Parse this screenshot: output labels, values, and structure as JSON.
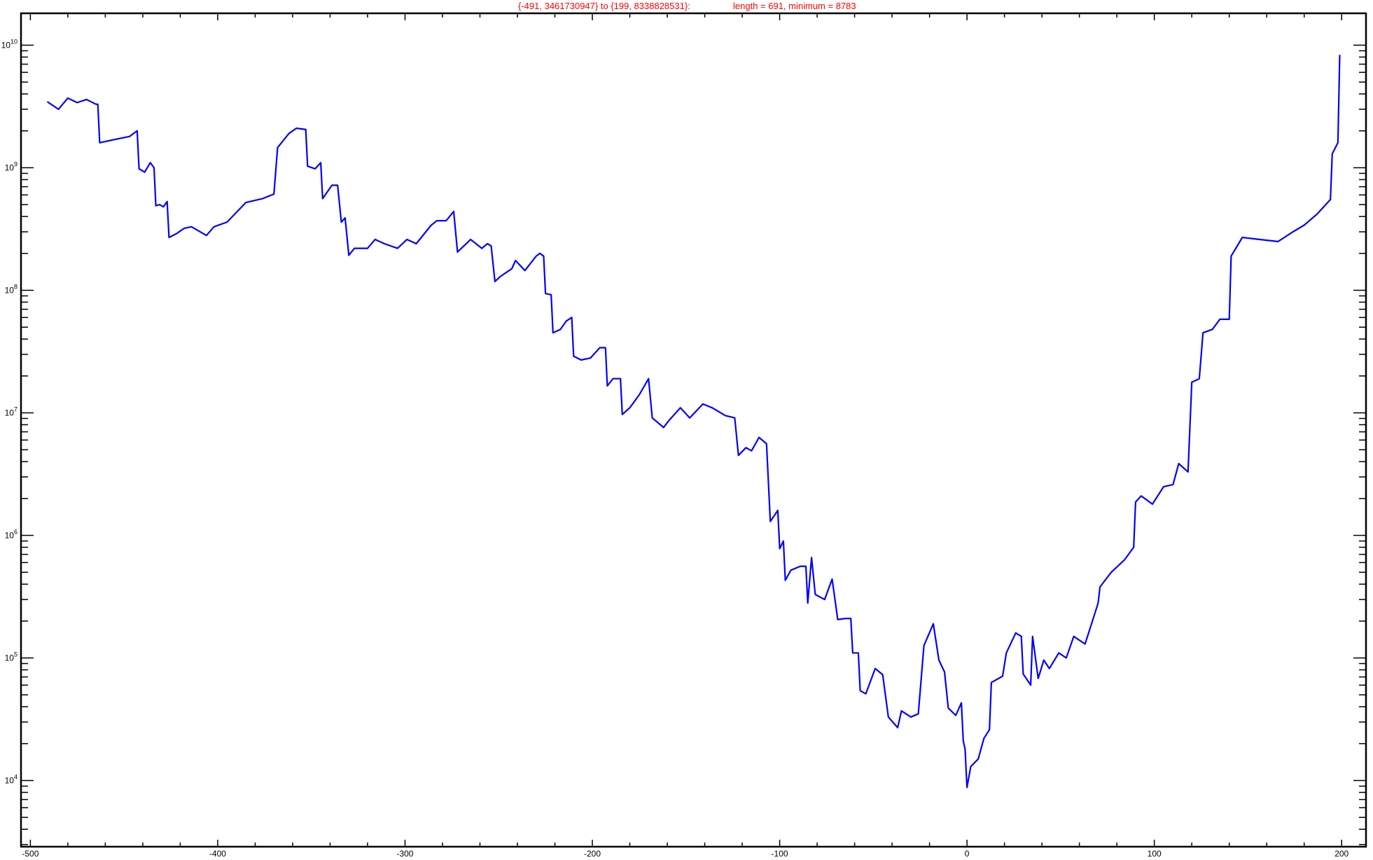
{
  "chart_data": {
    "type": "line",
    "title_parts": [
      "{-491, 3461730947} to {199, 8338828531}:",
      "length = 691, minimum = 8783"
    ],
    "xlabel": "",
    "ylabel": "",
    "x_scale": "linear",
    "y_scale": "log",
    "xlim": [
      -505,
      213
    ],
    "ylim_log10": [
      3.46,
      10.26
    ],
    "x_ticks": [
      -500,
      -400,
      -300,
      -200,
      -100,
      0,
      100,
      200
    ],
    "x_tick_labels": [
      "-500",
      "-400",
      "-300",
      "-200",
      "-100",
      "0",
      "100",
      "200"
    ],
    "y_ticks": [
      4,
      5,
      6,
      7,
      8,
      9,
      10
    ],
    "y_tick_base": "10",
    "grid": false,
    "line_color": "#0000ff",
    "title_color": "#ff0000",
    "series": [
      {
        "points": [
          [
            -491,
            3460000000.0
          ],
          [
            -485,
            3000000000.0
          ],
          [
            -480,
            3700000000.0
          ],
          [
            -475,
            3400000000.0
          ],
          [
            -470,
            3600000000.0
          ],
          [
            -465,
            3300000000.0
          ],
          [
            -464,
            3300000000.0
          ],
          [
            -463,
            1600000000.0
          ],
          [
            -455,
            1700000000.0
          ],
          [
            -447,
            1800000000.0
          ],
          [
            -443,
            2000000000.0
          ],
          [
            -442,
            980000000.0
          ],
          [
            -439,
            920000000.0
          ],
          [
            -436,
            1100000000.0
          ],
          [
            -434,
            1000000000.0
          ],
          [
            -433,
            490000000.0
          ],
          [
            -431,
            500000000.0
          ],
          [
            -429,
            480000000.0
          ],
          [
            -427,
            530000000.0
          ],
          [
            -426,
            270000000.0
          ],
          [
            -422,
            290000000.0
          ],
          [
            -418,
            320000000.0
          ],
          [
            -414,
            330000000.0
          ],
          [
            -406,
            280000000.0
          ],
          [
            -402,
            330000000.0
          ],
          [
            -395,
            360000000.0
          ],
          [
            -385,
            520000000.0
          ],
          [
            -376,
            560000000.0
          ],
          [
            -370,
            610000000.0
          ],
          [
            -368,
            1460000000.0
          ],
          [
            -362,
            1900000000.0
          ],
          [
            -358,
            2100000000.0
          ],
          [
            -353,
            2050000000.0
          ],
          [
            -352,
            1030000000.0
          ],
          [
            -348,
            980000000.0
          ],
          [
            -345,
            1100000000.0
          ],
          [
            -344,
            560000000.0
          ],
          [
            -339,
            720000000.0
          ],
          [
            -336,
            720000000.0
          ],
          [
            -334,
            360000000.0
          ],
          [
            -332,
            390000000.0
          ],
          [
            -330,
            193000000.0
          ],
          [
            -327,
            220000000.0
          ],
          [
            -320,
            220000000.0
          ],
          [
            -316,
            260000000.0
          ],
          [
            -311,
            240000000.0
          ],
          [
            -304,
            220000000.0
          ],
          [
            -299,
            260000000.0
          ],
          [
            -294,
            240000000.0
          ],
          [
            -286,
            340000000.0
          ],
          [
            -283,
            370000000.0
          ],
          [
            -278,
            370000000.0
          ],
          [
            -274,
            440000000.0
          ],
          [
            -272,
            205000000.0
          ],
          [
            -265,
            260000000.0
          ],
          [
            -259,
            220000000.0
          ],
          [
            -256,
            240000000.0
          ],
          [
            -254,
            230000000.0
          ],
          [
            -252,
            118000000.0
          ],
          [
            -249,
            130000000.0
          ],
          [
            -243,
            150000000.0
          ],
          [
            -241,
            175000000.0
          ],
          [
            -236,
            145000000.0
          ],
          [
            -230,
            190000000.0
          ],
          [
            -228,
            200000000.0
          ],
          [
            -226,
            190000000.0
          ],
          [
            -225,
            94000000.0
          ],
          [
            -222,
            92000000.0
          ],
          [
            -221,
            45000000.0
          ],
          [
            -217,
            48000000.0
          ],
          [
            -214,
            56000000.0
          ],
          [
            -211,
            60000000.0
          ],
          [
            -210,
            29000000.0
          ],
          [
            -206,
            27000000.0
          ],
          [
            -201,
            28000000.0
          ],
          [
            -196,
            34000000.0
          ],
          [
            -193,
            34000000.0
          ],
          [
            -192,
            16600000.0
          ],
          [
            -189,
            19000000.0
          ],
          [
            -186,
            19000000.0
          ],
          [
            -185,
            19000000.0
          ],
          [
            -184,
            9700000.0
          ],
          [
            -180,
            11000000.0
          ],
          [
            -175,
            14000000.0
          ],
          [
            -170,
            19000000.0
          ],
          [
            -168,
            9100000.0
          ],
          [
            -162,
            7600000.0
          ],
          [
            -159,
            8700000.0
          ],
          [
            -153,
            11000000.0
          ],
          [
            -148,
            9100000.0
          ],
          [
            -141,
            11800000.0
          ],
          [
            -136,
            11000000.0
          ],
          [
            -129,
            9500000.0
          ],
          [
            -124,
            9100000.0
          ],
          [
            -122,
            4500000.0
          ],
          [
            -118,
            5200000.0
          ],
          [
            -115,
            4900000.0
          ],
          [
            -111,
            6300000.0
          ],
          [
            -107,
            5600000.0
          ],
          [
            -105,
            1300000.0
          ],
          [
            -101,
            1600000.0
          ],
          [
            -100,
            780000.0
          ],
          [
            -98,
            900000.0
          ],
          [
            -97,
            430000.0
          ],
          [
            -94,
            520000.0
          ],
          [
            -89,
            560000.0
          ],
          [
            -86,
            560000.0
          ],
          [
            -85,
            280000.0
          ],
          [
            -83,
            660000.0
          ],
          [
            -81,
            330000.0
          ],
          [
            -76,
            300000.0
          ],
          [
            -72,
            440000.0
          ],
          [
            -69,
            206000.0
          ],
          [
            -65,
            210000.0
          ],
          [
            -62,
            210000.0
          ],
          [
            -61,
            110000.0
          ],
          [
            -58,
            110000.0
          ],
          [
            -57,
            54000.0
          ],
          [
            -54,
            51000.0
          ],
          [
            -49,
            82000.0
          ],
          [
            -45,
            73000.0
          ],
          [
            -42,
            33000.0
          ],
          [
            -37,
            27000.0
          ],
          [
            -35,
            37000.0
          ],
          [
            -30,
            33000.0
          ],
          [
            -26,
            35000.0
          ],
          [
            -23,
            126000.0
          ],
          [
            -18,
            190000.0
          ],
          [
            -15,
            96000.0
          ],
          [
            -12,
            77000.0
          ],
          [
            -10,
            39000.0
          ],
          [
            -6,
            34000.0
          ],
          [
            -3,
            43000.0
          ],
          [
            -2,
            21000.0
          ],
          [
            -1,
            18000.0
          ],
          [
            0,
            8783
          ],
          [
            2,
            13000.0
          ],
          [
            6,
            15000.0
          ],
          [
            9,
            22000.0
          ],
          [
            12,
            26000.0
          ],
          [
            13,
            63000.0
          ],
          [
            19,
            71000.0
          ],
          [
            21,
            110000.0
          ],
          [
            26,
            160000.0
          ],
          [
            29,
            150000.0
          ],
          [
            30,
            74000.0
          ],
          [
            34,
            60000.0
          ],
          [
            35,
            150000.0
          ],
          [
            38,
            68000.0
          ],
          [
            41,
            96000.0
          ],
          [
            44,
            82000.0
          ],
          [
            49,
            110000.0
          ],
          [
            53,
            100000.0
          ],
          [
            57,
            150000.0
          ],
          [
            63,
            130000.0
          ],
          [
            66,
            180000.0
          ],
          [
            70,
            280000.0
          ],
          [
            71,
            380000.0
          ],
          [
            77,
            500000.0
          ],
          [
            84,
            630000.0
          ],
          [
            89,
            800000.0
          ],
          [
            90,
            1870000.0
          ],
          [
            93,
            2100000.0
          ],
          [
            99,
            1800000.0
          ],
          [
            105,
            2500000.0
          ],
          [
            110,
            2600000.0
          ],
          [
            113,
            3850000.0
          ],
          [
            118,
            3300000.0
          ],
          [
            120,
            17800000.0
          ],
          [
            124,
            19000000.0
          ],
          [
            126,
            45000000.0
          ],
          [
            131,
            48000000.0
          ],
          [
            135,
            58000000.0
          ],
          [
            140,
            58000000.0
          ],
          [
            141,
            190000000.0
          ],
          [
            147,
            270000000.0
          ],
          [
            156,
            260000000.0
          ],
          [
            166,
            250000000.0
          ],
          [
            174,
            300000000.0
          ],
          [
            180,
            340000000.0
          ],
          [
            187,
            420000000.0
          ],
          [
            194,
            550000000.0
          ],
          [
            195,
            1300000000.0
          ],
          [
            198,
            1600000000.0
          ],
          [
            199,
            8338828531
          ]
        ]
      }
    ]
  }
}
